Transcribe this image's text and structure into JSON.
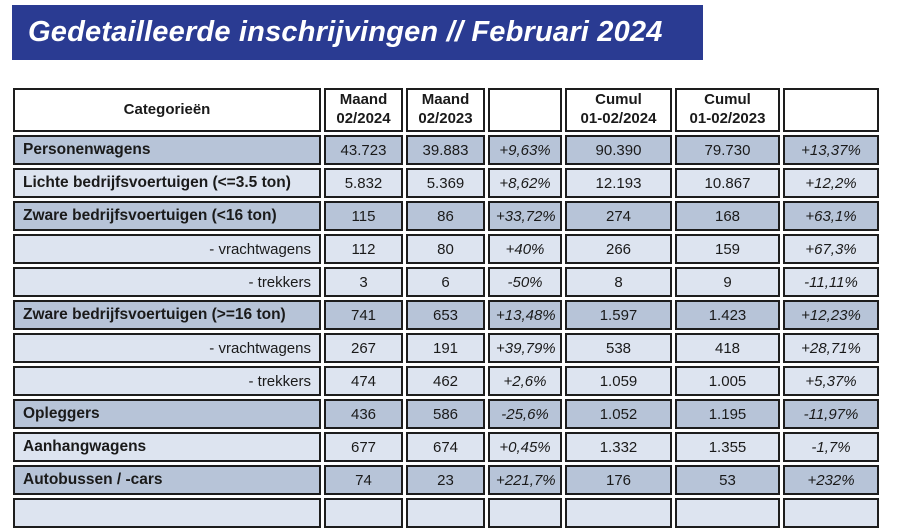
{
  "colors": {
    "banner_bg": "#2a3b92",
    "row_dark": "#b7c4d8",
    "row_light": "#dde4f0",
    "border": "#1d1d1d",
    "text": "#1a1a1a",
    "header_bg": "#ffffff"
  },
  "banner": {
    "title": "Gedetailleerde inschrijvingen // Februari 2024"
  },
  "table": {
    "headers": [
      {
        "line1": "Categorieën",
        "line2": ""
      },
      {
        "line1": "Maand",
        "line2": "02/2024"
      },
      {
        "line1": "Maand",
        "line2": "02/2023"
      },
      {
        "line1": "",
        "line2": ""
      },
      {
        "line1": "Cumul",
        "line2": "01-02/2024"
      },
      {
        "line1": "Cumul",
        "line2": "01-02/2023"
      },
      {
        "line1": "",
        "line2": ""
      }
    ],
    "rows": [
      {
        "label": "Personenwagens",
        "indent": false,
        "shade": "dark",
        "m2024": "43.723",
        "m2023": "39.883",
        "pct_m": "+9,63%",
        "c2024": "90.390",
        "c2023": "79.730",
        "pct_c": "+13,37%"
      },
      {
        "label": "Lichte bedrijfsvoertuigen (<=3.5 ton)",
        "indent": false,
        "shade": "light",
        "m2024": "5.832",
        "m2023": "5.369",
        "pct_m": "+8,62%",
        "c2024": "12.193",
        "c2023": "10.867",
        "pct_c": "+12,2%"
      },
      {
        "label": "Zware bedrijfsvoertuigen (<16 ton)",
        "indent": false,
        "shade": "dark",
        "m2024": "115",
        "m2023": "86",
        "pct_m": "+33,72%",
        "c2024": "274",
        "c2023": "168",
        "pct_c": "+63,1%"
      },
      {
        "label": "- vrachtwagens",
        "indent": true,
        "shade": "light",
        "m2024": "112",
        "m2023": "80",
        "pct_m": "+40%",
        "c2024": "266",
        "c2023": "159",
        "pct_c": "+67,3%"
      },
      {
        "label": "- trekkers",
        "indent": true,
        "shade": "light",
        "m2024": "3",
        "m2023": "6",
        "pct_m": "-50%",
        "c2024": "8",
        "c2023": "9",
        "pct_c": "-11,11%"
      },
      {
        "label": "Zware bedrijfsvoertuigen (>=16 ton)",
        "indent": false,
        "shade": "dark",
        "m2024": "741",
        "m2023": "653",
        "pct_m": "+13,48%",
        "c2024": "1.597",
        "c2023": "1.423",
        "pct_c": "+12,23%"
      },
      {
        "label": "- vrachtwagens",
        "indent": true,
        "shade": "light",
        "m2024": "267",
        "m2023": "191",
        "pct_m": "+39,79%",
        "c2024": "538",
        "c2023": "418",
        "pct_c": "+28,71%"
      },
      {
        "label": "- trekkers",
        "indent": true,
        "shade": "light",
        "m2024": "474",
        "m2023": "462",
        "pct_m": "+2,6%",
        "c2024": "1.059",
        "c2023": "1.005",
        "pct_c": "+5,37%"
      },
      {
        "label": "Opleggers",
        "indent": false,
        "shade": "dark",
        "m2024": "436",
        "m2023": "586",
        "pct_m": "-25,6%",
        "c2024": "1.052",
        "c2023": "1.195",
        "pct_c": "-11,97%"
      },
      {
        "label": "Aanhangwagens",
        "indent": false,
        "shade": "light",
        "m2024": "677",
        "m2023": "674",
        "pct_m": "+0,45%",
        "c2024": "1.332",
        "c2023": "1.355",
        "pct_c": "-1,7%"
      },
      {
        "label": "Autobussen / -cars",
        "indent": false,
        "shade": "dark",
        "m2024": "74",
        "m2023": "23",
        "pct_m": "+221,7%",
        "c2024": "176",
        "c2023": "53",
        "pct_c": "+232%"
      },
      {
        "label": "",
        "indent": false,
        "shade": "light",
        "partial": true,
        "m2024": "",
        "m2023": "",
        "pct_m": "",
        "c2024": "",
        "c2023": "",
        "pct_c": ""
      }
    ]
  }
}
